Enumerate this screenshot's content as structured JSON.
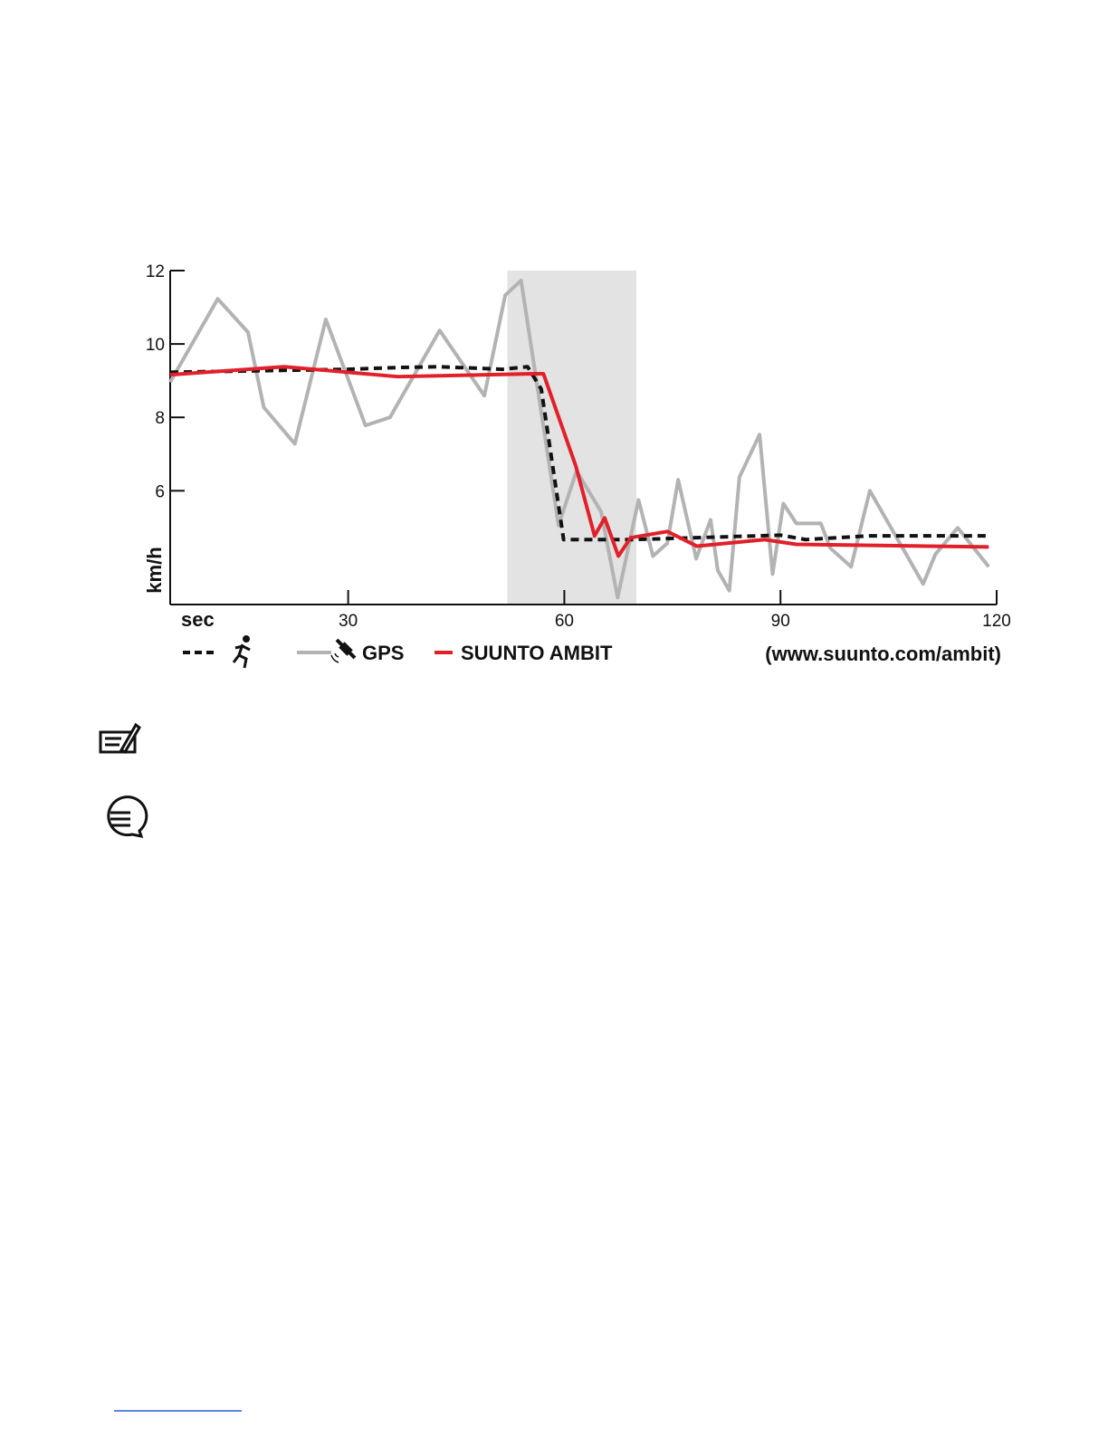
{
  "chart_data": {
    "type": "line",
    "x_label": "sec",
    "y_label": "km/h",
    "source": "(www.suunto.com/ambit)",
    "xlim": [
      5.3,
      120
    ],
    "xticks": [
      30,
      60,
      90,
      120
    ],
    "ylim": [
      2.9,
      12
    ],
    "yticks": [
      6,
      8,
      10,
      12
    ],
    "highlight": [
      52.1,
      70
    ],
    "series": [
      {
        "color": "#111111",
        "dashed": true,
        "x": [
          5.3,
          29.9,
          37.2,
          42.7,
          51.4,
          54.9,
          56.8,
          59.9,
          69.6,
          90,
          93.5,
          102.3,
          118.9
        ],
        "values": [
          9.23,
          9.31,
          9.36,
          9.38,
          9.31,
          9.38,
          8.77,
          4.67,
          4.67,
          4.79,
          4.67,
          4.77,
          4.77
        ]
      },
      {
        "name": "GPS",
        "color": "#b3b3b3",
        "dashed": false,
        "x": [
          5.3,
          11.9,
          16.1,
          18.3,
          22.6,
          26.9,
          32.4,
          35.8,
          42.7,
          48.9,
          51.8,
          54.0,
          59.2,
          61.7,
          65.1,
          67.4,
          70.3,
          72.3,
          74.3,
          75.8,
          78.3,
          80.3,
          81.3,
          82.9,
          84.3,
          87.1,
          88.9,
          90.4,
          92.2,
          95.6,
          96.9,
          99.8,
          102.4,
          109.8,
          111.5,
          114.6,
          118.9
        ],
        "values": [
          8.96,
          11.23,
          10.32,
          8.27,
          7.28,
          10.67,
          7.78,
          8.0,
          10.37,
          8.59,
          11.33,
          11.73,
          5.06,
          6.54,
          5.43,
          3.09,
          5.75,
          4.22,
          4.57,
          6.3,
          4.15,
          5.21,
          3.83,
          3.28,
          6.37,
          7.53,
          3.73,
          5.65,
          5.11,
          5.11,
          4.44,
          3.93,
          6.0,
          3.46,
          4.27,
          4.99,
          3.93
        ]
      },
      {
        "name": "SUUNTO AMBIT",
        "color": "#e2202a",
        "dashed": false,
        "x": [
          5.3,
          21.1,
          36.9,
          55.8,
          57.1,
          61.6,
          64.2,
          65.6,
          67.5,
          69.2,
          74.3,
          78.4,
          87.8,
          92.2,
          118.9
        ],
        "values": [
          9.16,
          9.38,
          9.11,
          9.19,
          9.19,
          6.67,
          4.77,
          5.26,
          4.22,
          4.72,
          4.89,
          4.49,
          4.67,
          4.54,
          4.47
        ]
      }
    ]
  }
}
